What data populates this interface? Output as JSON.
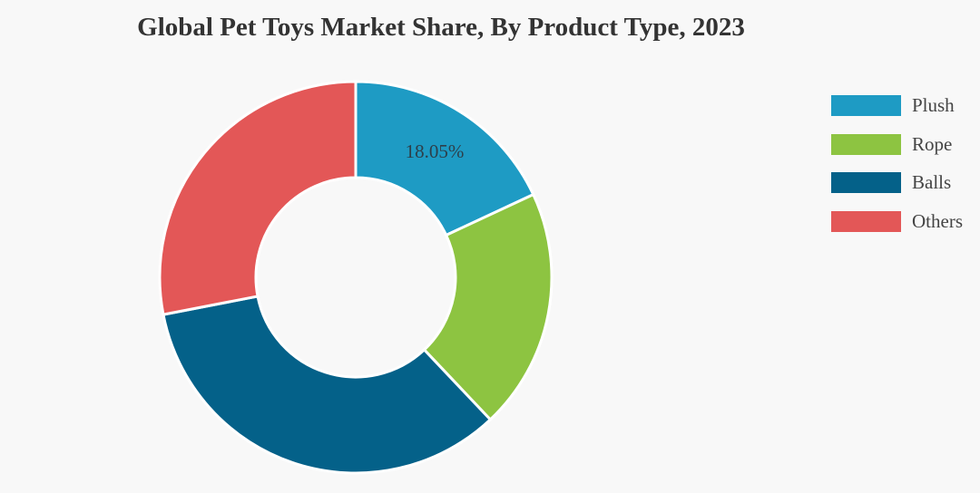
{
  "chart_data": {
    "type": "pie",
    "variant": "donut",
    "title": "Global Pet Toys Market Share, By Product Type, 2023",
    "categories": [
      "Plush",
      "Rope",
      "Balls",
      "Others"
    ],
    "values": [
      18.05,
      19.9,
      34.0,
      28.05
    ],
    "unit": "%",
    "colors": [
      "#1e9bc4",
      "#8dc441",
      "#046189",
      "#e35757"
    ],
    "data_labels": [
      {
        "category": "Plush",
        "text": "18.05%"
      }
    ],
    "start_angle_deg": 0,
    "direction": "clockwise",
    "legend_position": "right",
    "center": [
      392,
      306
    ],
    "outer_radius": 216,
    "inner_radius": 110
  },
  "title": "Global Pet Toys Market Share, By Product Type, 2023",
  "legend": {
    "items": [
      {
        "label": "Plush",
        "color": "#1e9bc4"
      },
      {
        "label": "Rope",
        "color": "#8dc441"
      },
      {
        "label": "Balls",
        "color": "#046189"
      },
      {
        "label": "Others",
        "color": "#e35757"
      }
    ]
  },
  "labels": {
    "plush_value": "18.05%"
  },
  "colors": {
    "background": "#f8f8f8",
    "title_text": "#333333",
    "separator": "#ffffff"
  }
}
